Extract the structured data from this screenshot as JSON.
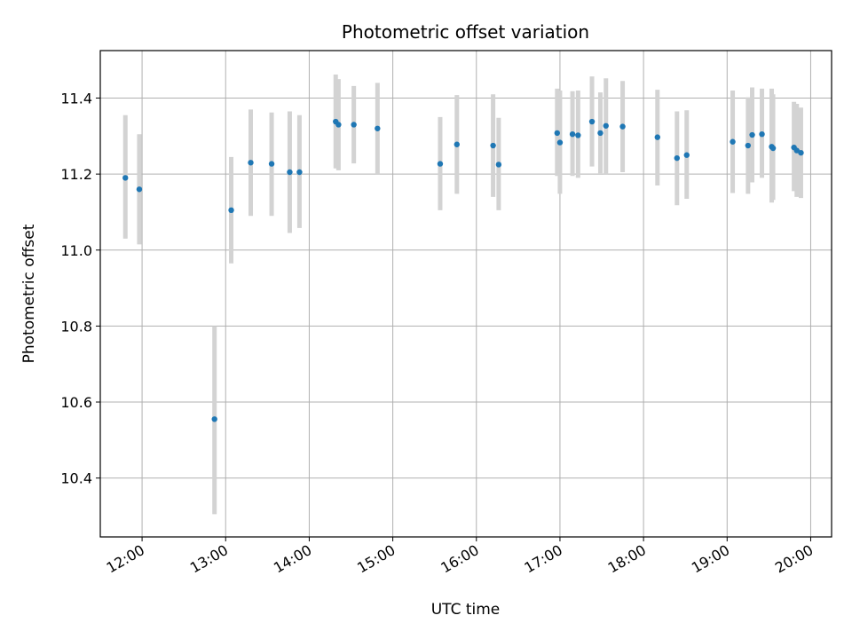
{
  "chart_data": {
    "type": "scatter",
    "title": "Photometric offset variation",
    "xlabel": "UTC time",
    "ylabel": "Photometric offset",
    "xlim": [
      "11:30",
      "20:15"
    ],
    "ylim": [
      10.245,
      11.525
    ],
    "grid": true,
    "x_ticks": [
      "12:00",
      "13:00",
      "14:00",
      "15:00",
      "16:00",
      "17:00",
      "18:00",
      "19:00",
      "20:00"
    ],
    "y_ticks": [
      10.4,
      10.6,
      10.8,
      11.0,
      11.2,
      11.4
    ],
    "y_tick_labels": [
      "10.4",
      "10.6",
      "10.8",
      "11.0",
      "11.2",
      "11.4"
    ],
    "colors": {
      "point": "#1f77b4",
      "errorbar": "#d3d3d3",
      "grid": "#b0b0b0"
    },
    "points": [
      {
        "x": "11:48",
        "y": 11.19,
        "ylo": 11.03,
        "yhi": 11.355
      },
      {
        "x": "11:58",
        "y": 11.16,
        "ylo": 11.015,
        "yhi": 11.305
      },
      {
        "x": "12:52",
        "y": 10.555,
        "ylo": 10.305,
        "yhi": 10.8
      },
      {
        "x": "13:04",
        "y": 11.105,
        "ylo": 10.965,
        "yhi": 11.245
      },
      {
        "x": "13:18",
        "y": 11.23,
        "ylo": 11.09,
        "yhi": 11.37
      },
      {
        "x": "13:33",
        "y": 11.227,
        "ylo": 11.09,
        "yhi": 11.362
      },
      {
        "x": "13:46",
        "y": 11.205,
        "ylo": 11.045,
        "yhi": 11.365
      },
      {
        "x": "13:53",
        "y": 11.205,
        "ylo": 11.058,
        "yhi": 11.355
      },
      {
        "x": "14:19",
        "y": 11.338,
        "ylo": 11.215,
        "yhi": 11.462
      },
      {
        "x": "14:21",
        "y": 11.33,
        "ylo": 11.21,
        "yhi": 11.45
      },
      {
        "x": "14:32",
        "y": 11.33,
        "ylo": 11.228,
        "yhi": 11.432
      },
      {
        "x": "14:49",
        "y": 11.32,
        "ylo": 11.2,
        "yhi": 11.44
      },
      {
        "x": "15:34",
        "y": 11.227,
        "ylo": 11.105,
        "yhi": 11.35
      },
      {
        "x": "15:46",
        "y": 11.278,
        "ylo": 11.148,
        "yhi": 11.408
      },
      {
        "x": "16:12",
        "y": 11.275,
        "ylo": 11.14,
        "yhi": 11.41
      },
      {
        "x": "16:16",
        "y": 11.225,
        "ylo": 11.105,
        "yhi": 11.348
      },
      {
        "x": "16:58",
        "y": 11.308,
        "ylo": 11.195,
        "yhi": 11.425
      },
      {
        "x": "17:00",
        "y": 11.283,
        "ylo": 11.148,
        "yhi": 11.42
      },
      {
        "x": "17:09",
        "y": 11.305,
        "ylo": 11.195,
        "yhi": 11.418
      },
      {
        "x": "17:13",
        "y": 11.302,
        "ylo": 11.19,
        "yhi": 11.42
      },
      {
        "x": "17:23",
        "y": 11.338,
        "ylo": 11.22,
        "yhi": 11.457
      },
      {
        "x": "17:29",
        "y": 11.308,
        "ylo": 11.202,
        "yhi": 11.415
      },
      {
        "x": "17:33",
        "y": 11.327,
        "ylo": 11.2,
        "yhi": 11.452
      },
      {
        "x": "17:45",
        "y": 11.325,
        "ylo": 11.205,
        "yhi": 11.445
      },
      {
        "x": "18:10",
        "y": 11.297,
        "ylo": 11.17,
        "yhi": 11.422
      },
      {
        "x": "18:24",
        "y": 11.242,
        "ylo": 11.118,
        "yhi": 11.365
      },
      {
        "x": "18:31",
        "y": 11.25,
        "ylo": 11.135,
        "yhi": 11.368
      },
      {
        "x": "19:04",
        "y": 11.285,
        "ylo": 11.15,
        "yhi": 11.42
      },
      {
        "x": "19:15",
        "y": 11.275,
        "ylo": 11.148,
        "yhi": 11.402
      },
      {
        "x": "19:18",
        "y": 11.303,
        "ylo": 11.178,
        "yhi": 11.428
      },
      {
        "x": "19:25",
        "y": 11.305,
        "ylo": 11.19,
        "yhi": 11.425
      },
      {
        "x": "19:32",
        "y": 11.272,
        "ylo": 11.125,
        "yhi": 11.425
      },
      {
        "x": "19:33",
        "y": 11.268,
        "ylo": 11.132,
        "yhi": 11.41
      },
      {
        "x": "19:48",
        "y": 11.27,
        "ylo": 11.155,
        "yhi": 11.39
      },
      {
        "x": "19:50",
        "y": 11.262,
        "ylo": 11.14,
        "yhi": 11.385
      },
      {
        "x": "19:53",
        "y": 11.256,
        "ylo": 11.137,
        "yhi": 11.375
      }
    ]
  }
}
